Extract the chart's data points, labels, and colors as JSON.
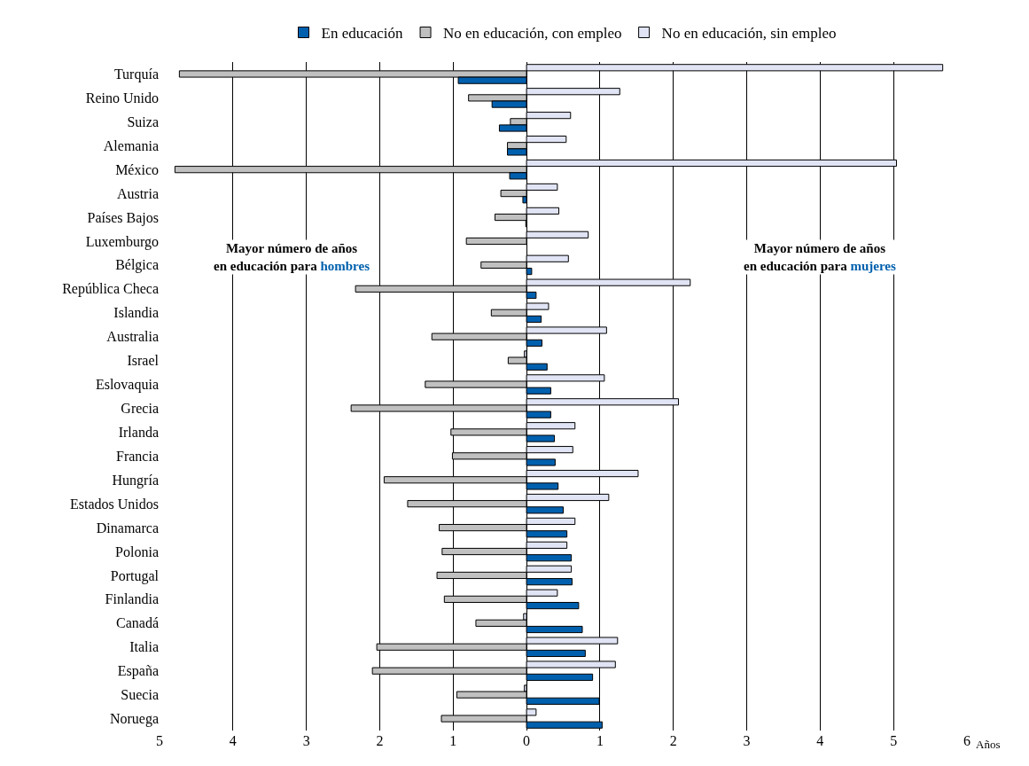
{
  "chart_data": {
    "type": "bar",
    "orientation": "horizontal",
    "xlabel": "Años",
    "categories": [
      "Turquía",
      "Reino Unido",
      "Suiza",
      "Alemania",
      "México",
      "Austria",
      "Países Bajos",
      "Luxemburgo",
      "Bélgica",
      "República Checa",
      "Islandia",
      "Australia",
      "Israel",
      "Eslovaquia",
      "Grecia",
      "Irlanda",
      "Francia",
      "Hungría",
      "Estados Unidos",
      "Dinamarca",
      "Polonia",
      "Portugal",
      "Finlandia",
      "Canadá",
      "Italia",
      "España",
      "Suecia",
      "Noruega"
    ],
    "series": [
      {
        "name": "En educación",
        "color": "#0060ae",
        "values": [
          -0.93,
          -0.47,
          -0.37,
          -0.26,
          -0.23,
          -0.05,
          -0.01,
          null,
          0.07,
          0.13,
          0.2,
          0.21,
          0.28,
          0.33,
          0.33,
          0.38,
          0.39,
          0.43,
          0.5,
          0.55,
          0.61,
          0.62,
          0.71,
          0.76,
          0.8,
          0.9,
          0.99,
          1.03
        ]
      },
      {
        "name": "No en educación, con empleo",
        "color": "#c0c0c0",
        "values": [
          -4.73,
          -0.79,
          -0.22,
          -0.26,
          -4.79,
          -0.35,
          -0.43,
          -0.82,
          -0.62,
          -2.33,
          -0.48,
          -1.29,
          -0.25,
          -1.38,
          -2.39,
          -1.03,
          -1.01,
          -1.94,
          -1.62,
          -1.19,
          -1.15,
          -1.22,
          -1.12,
          -0.69,
          -2.04,
          -2.1,
          -0.95,
          -1.16
        ]
      },
      {
        "name": "No en educación, sin empleo",
        "color": "#e0e4f4",
        "values": [
          5.67,
          1.27,
          0.6,
          0.54,
          5.04,
          0.42,
          0.44,
          0.84,
          0.57,
          2.23,
          0.3,
          1.09,
          -0.03,
          1.06,
          2.07,
          0.66,
          0.63,
          1.52,
          1.12,
          0.66,
          0.55,
          0.61,
          0.42,
          -0.04,
          1.24,
          1.21,
          -0.03,
          0.13
        ]
      }
    ],
    "xlim": [
      -5,
      6
    ],
    "xticks": [
      {
        "value": -5,
        "label": "5"
      },
      {
        "value": -4,
        "label": "4"
      },
      {
        "value": -3,
        "label": "3"
      },
      {
        "value": -2,
        "label": "2"
      },
      {
        "value": -1,
        "label": "1"
      },
      0,
      1,
      2,
      3,
      4,
      5,
      6
    ],
    "grid": "x",
    "legend": "top",
    "annotations": [
      "Mayor número de años\nen educación para hombres",
      "Mayor número de años\nen educación para mujeres"
    ]
  }
}
